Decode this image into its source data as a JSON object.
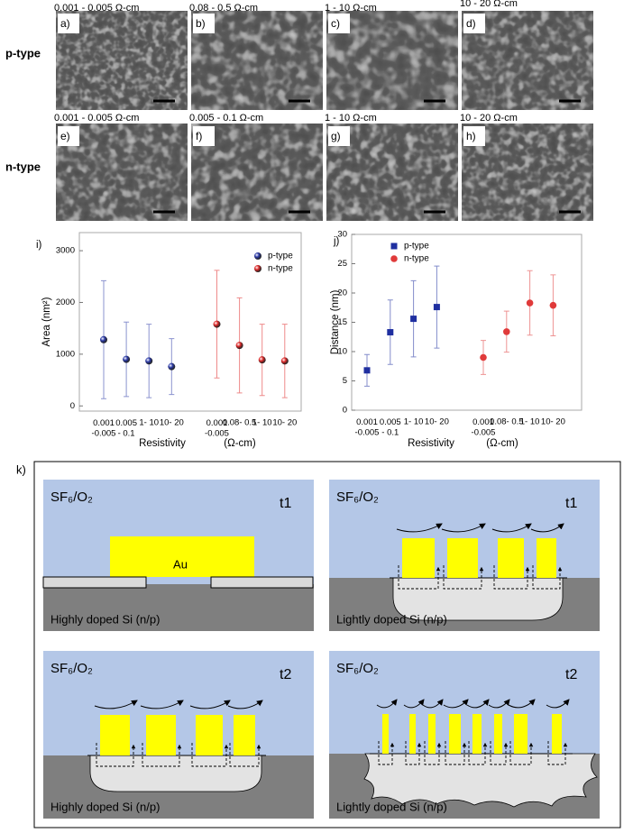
{
  "sem_figure": {
    "row_labels": [
      "p-type",
      "n-type"
    ],
    "panels": [
      {
        "label": "a)",
        "header": "0.001 - 0.005 Ω-cm"
      },
      {
        "label": "b)",
        "header": "0.08 - 0.5 Ω-cm"
      },
      {
        "label": "c)",
        "header": "1 - 10 Ω-cm"
      },
      {
        "label": "d)",
        "header": "10 - 20 Ω-cm"
      },
      {
        "label": "e)",
        "header": "0.001 - 0.005 Ω-cm"
      },
      {
        "label": "f)",
        "header": "0.005 - 0.1 Ω-cm"
      },
      {
        "label": "g)",
        "header": "1 - 10 Ω-cm"
      },
      {
        "label": "h)",
        "header": "10 - 20 Ω-cm"
      }
    ]
  },
  "chart_data": [
    {
      "type": "errorbar",
      "label": "i)",
      "ylabel": "Area (nm²)",
      "xlabel": "Resistivity",
      "xlabel_unit": "(Ω-cm)",
      "categories": [
        "0.001\n-0.005",
        "0.005\n- 0.1",
        "1- 10",
        "10- 20",
        null,
        "0.001\n-0.005",
        "0.08- 0.5",
        "1- 10",
        "10- 20"
      ],
      "series": [
        {
          "name": "p-type",
          "color": "#2b3aa8",
          "marker": "sphere",
          "values": [
            1280,
            900,
            870,
            760,
            null,
            null,
            null,
            null,
            null
          ],
          "errors": [
            1140,
            720,
            710,
            540,
            null,
            null,
            null,
            null,
            null
          ]
        },
        {
          "name": "n-type",
          "color": "#e02a2a",
          "marker": "sphere",
          "values": [
            null,
            null,
            null,
            null,
            null,
            1580,
            1170,
            890,
            870
          ],
          "errors": [
            null,
            null,
            null,
            null,
            null,
            1040,
            920,
            690,
            710
          ]
        }
      ],
      "ylim": [
        -100,
        3350
      ],
      "yticks": [
        0,
        1000,
        2000,
        3000
      ],
      "grid": false,
      "legend": "upper right"
    },
    {
      "type": "errorbar",
      "label": "j)",
      "ylabel": "Distance (nm)",
      "xlabel": "Resistivity",
      "xlabel_unit": "(Ω-cm)",
      "categories": [
        "0.001\n-0.005",
        "0.005\n- 0.1",
        "1- 10",
        "10- 20",
        null,
        "0.001\n-0.005",
        "0.08- 0.5",
        "1- 10",
        "10- 20"
      ],
      "series": [
        {
          "name": "p-type",
          "color": "#1f2fa0",
          "marker": "square",
          "values": [
            6.8,
            13.3,
            15.6,
            17.6,
            null,
            null,
            null,
            null,
            null
          ],
          "errors": [
            2.7,
            5.5,
            6.5,
            7,
            null,
            null,
            null,
            null,
            null
          ]
        },
        {
          "name": "n-type",
          "color": "#e03a3a",
          "marker": "circle",
          "values": [
            null,
            null,
            null,
            null,
            null,
            9,
            13.4,
            18.3,
            17.9
          ],
          "errors": [
            null,
            null,
            null,
            null,
            null,
            2.9,
            3.5,
            5.5,
            5.2
          ]
        }
      ],
      "ylim": [
        0,
        30
      ],
      "yticks": [
        0,
        5,
        10,
        15,
        20,
        25,
        30
      ],
      "grid": false,
      "legend": "upper left"
    }
  ],
  "schematic": {
    "label": "k)",
    "panels": [
      {
        "gas": "SF₆/O₂",
        "time": "t1",
        "substrate": "Highly doped Si (n/p)",
        "metal": "Au"
      },
      {
        "gas": "SF₆/O₂",
        "time": "t1",
        "substrate": "Lightly doped Si (n/p)"
      },
      {
        "gas": "SF₆/O₂",
        "time": "t2",
        "substrate": "Highly doped Si (n/p)"
      },
      {
        "gas": "SF₆/O₂",
        "time": "t2",
        "substrate": "Lightly doped Si (n/p)"
      }
    ]
  }
}
